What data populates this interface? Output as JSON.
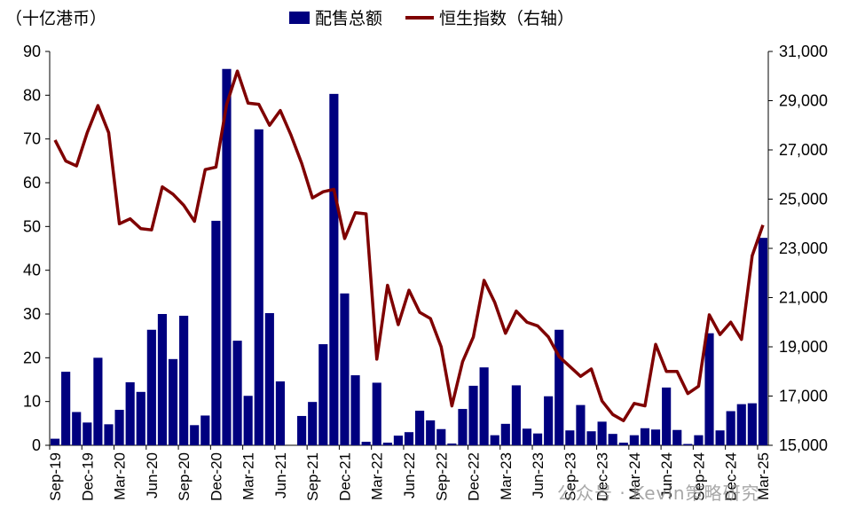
{
  "chart_data": {
    "type": "bar+line",
    "left_axis_unit": "（十亿港币）",
    "legend": [
      {
        "name": "配售总额",
        "color": "#00007F",
        "kind": "bar"
      },
      {
        "name": "恒生指数（右轴）",
        "color": "#7F0000",
        "kind": "line"
      }
    ],
    "y_left": {
      "min": 0,
      "max": 90,
      "ticks": [
        "0",
        "10",
        "20",
        "30",
        "40",
        "50",
        "60",
        "70",
        "80",
        "90"
      ]
    },
    "y_right": {
      "min": 15000,
      "max": 31000,
      "ticks": [
        "15,000",
        "17,000",
        "19,000",
        "21,000",
        "23,000",
        "25,000",
        "27,000",
        "29,000",
        "31,000"
      ]
    },
    "x_tick_labels": [
      "Sep-19",
      "Dec-19",
      "Mar-20",
      "Jun-20",
      "Sep-20",
      "Dec-20",
      "Mar-21",
      "Jun-21",
      "Sep-21",
      "Dec-21",
      "Mar-22",
      "Jun-22",
      "Sep-22",
      "Dec-22",
      "Mar-23",
      "Jun-23",
      "Sep-23",
      "Dec-23",
      "Mar-24",
      "Jun-24",
      "Sep-24",
      "Dec-24",
      "Mar-25"
    ],
    "series": [
      {
        "name": "配售总额",
        "kind": "bar",
        "values": [
          1.5,
          16.8,
          7.6,
          5.2,
          20,
          4.8,
          8.1,
          14.4,
          12.2,
          26.4,
          30,
          19.7,
          29.6,
          4.6,
          6.8,
          51.3,
          86,
          23.9,
          11.3,
          72.2,
          30.2,
          14.6,
          0,
          6.7,
          9.9,
          23.1,
          80.3,
          34.7,
          16,
          0.8,
          14.3,
          0.6,
          2.2,
          3,
          7.9,
          5.7,
          3.7,
          0.4,
          8.3,
          13.6,
          17.8,
          2.3,
          4.9,
          13.7,
          3.8,
          2.7,
          11.2,
          26.4,
          3.4,
          9.2,
          3.2,
          5.4,
          2.6,
          0.6,
          2.3,
          3.9,
          3.6,
          13.2,
          3.5,
          0.3,
          2.3,
          25.6,
          3.4,
          7.8,
          9.4,
          9.6,
          47.4
        ]
      },
      {
        "name": "恒生指数（右轴）",
        "kind": "line",
        "values": [
          27400,
          26550,
          26350,
          27700,
          28800,
          27700,
          24000,
          24200,
          23800,
          23750,
          25500,
          25200,
          24750,
          24100,
          26200,
          26300,
          28850,
          30200,
          28900,
          28850,
          28000,
          28600,
          27600,
          26450,
          25050,
          25300,
          25400,
          23400,
          24450,
          24400,
          18500,
          21500,
          19900,
          21300,
          20400,
          20150,
          19000,
          16600,
          18400,
          19400,
          21700,
          20800,
          19550,
          20450,
          20000,
          19850,
          19400,
          18600,
          18200,
          17800,
          18100,
          16800,
          16250,
          16000,
          16700,
          16600,
          19100,
          18000,
          18000,
          17100,
          17400,
          20300,
          19500,
          20000,
          19300,
          22700,
          23950
        ]
      }
    ]
  },
  "watermark": "公众号 · Kevin策略研究"
}
